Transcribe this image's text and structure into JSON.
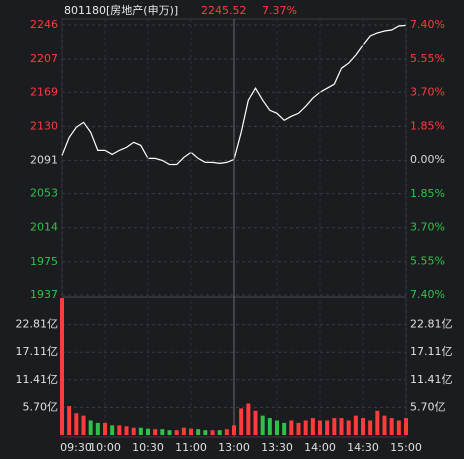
{
  "chart_data": [
    {
      "type": "line",
      "title": "801180[房地产(申万)]",
      "last_price": 2245.52,
      "change_pct": {
        "value": 7.37,
        "label": "7.37%"
      },
      "x": [
        "09:30",
        "09:35",
        "09:40",
        "09:45",
        "09:50",
        "09:55",
        "10:00",
        "10:05",
        "10:10",
        "10:15",
        "10:20",
        "10:25",
        "10:30",
        "10:35",
        "10:40",
        "10:45",
        "10:50",
        "10:55",
        "11:00",
        "11:05",
        "11:10",
        "11:15",
        "11:20",
        "11:25",
        "11:30",
        "13:05",
        "13:10",
        "13:15",
        "13:20",
        "13:25",
        "13:30",
        "13:35",
        "13:40",
        "13:45",
        "13:50",
        "13:55",
        "14:00",
        "14:05",
        "14:10",
        "14:15",
        "14:20",
        "14:25",
        "14:30",
        "14:35",
        "14:40",
        "14:45",
        "14:50",
        "14:55",
        "15:00"
      ],
      "series": [
        {
          "color": "#ffffff",
          "values": [
            2096.8,
            2117.4,
            2128.9,
            2134.6,
            2123.2,
            2102.5,
            2102.5,
            2097.9,
            2102.5,
            2105.9,
            2111.7,
            2108.2,
            2093.3,
            2093.3,
            2091.0,
            2086.4,
            2086.4,
            2094.5,
            2100.2,
            2093.3,
            2088.7,
            2088.7,
            2087.6,
            2088.7,
            2092.2,
            2123.2,
            2159.9,
            2173.7,
            2159.9,
            2148.4,
            2145.0,
            2136.9,
            2141.5,
            2145.0,
            2153.0,
            2162.2,
            2169.1,
            2173.7,
            2178.3,
            2196.6,
            2202.4,
            2211.6,
            2223.0,
            2233.4,
            2236.8,
            2239.1,
            2240.3,
            2244.9,
            2245.52
          ]
        }
      ],
      "ylim": [
        1937,
        2246
      ],
      "yticks": [
        2246,
        2207,
        2169,
        2130,
        2091,
        2053,
        2014,
        1975,
        1937
      ],
      "y2lim": [
        -7.4,
        7.4
      ],
      "y2ticks": [
        {
          "value": 7.4,
          "label": "7.40%"
        },
        {
          "value": 5.55,
          "label": "5.55%"
        },
        {
          "value": 3.7,
          "label": "3.70%"
        },
        {
          "value": 1.85,
          "label": "1.85%"
        },
        {
          "value": 0,
          "label": "0.00%"
        },
        {
          "value": -1.85,
          "label": "1.85%"
        },
        {
          "value": -3.7,
          "label": "3.70%"
        },
        {
          "value": -5.55,
          "label": "5.55%"
        },
        {
          "value": -7.4,
          "label": "7.40%"
        }
      ],
      "up_color": "#ff3b3b",
      "down_color": "#2fc24a",
      "flat_color": "#d8d8d8",
      "grid": true
    },
    {
      "type": "bar",
      "values": [
        28.3,
        6.0,
        4.5,
        4.0,
        3.0,
        2.5,
        2.5,
        2.0,
        2.0,
        1.8,
        1.5,
        1.5,
        1.3,
        1.2,
        1.2,
        1.0,
        1.0,
        1.5,
        1.3,
        1.2,
        1.0,
        1.0,
        1.0,
        1.2,
        2.0,
        5.5,
        6.5,
        5.0,
        4.0,
        3.5,
        3.0,
        2.5,
        3.0,
        2.5,
        3.0,
        3.5,
        3.0,
        3.0,
        3.5,
        3.5,
        3.0,
        4.0,
        3.5,
        3.0,
        5.0,
        4.0,
        3.5,
        3.0,
        3.5
      ],
      "colors": [
        "#ff3b3b",
        "#ff3b3b",
        "#ff3b3b",
        "#ff3b3b",
        "#2fc24a",
        "#2fc24a",
        "#ff3b3b",
        "#2fc24a",
        "#ff3b3b",
        "#ff3b3b",
        "#ff3b3b",
        "#2fc24a",
        "#2fc24a",
        "#ff3b3b",
        "#2fc24a",
        "#2fc24a",
        "#ff3b3b",
        "#ff3b3b",
        "#ff3b3b",
        "#2fc24a",
        "#2fc24a",
        "#ff3b3b",
        "#2fc24a",
        "#ff3b3b",
        "#ff3b3b",
        "#ff3b3b",
        "#ff3b3b",
        "#ff3b3b",
        "#2fc24a",
        "#2fc24a",
        "#2fc24a",
        "#2fc24a",
        "#ff3b3b",
        "#ff3b3b",
        "#ff3b3b",
        "#ff3b3b",
        "#ff3b3b",
        "#ff3b3b",
        "#ff3b3b",
        "#ff3b3b",
        "#ff3b3b",
        "#ff3b3b",
        "#ff3b3b",
        "#ff3b3b",
        "#ff3b3b",
        "#ff3b3b",
        "#ff3b3b",
        "#ff3b3b",
        "#ff3b3b"
      ],
      "ylim": [
        0,
        28.52
      ],
      "yticks": [
        {
          "value": 22.81,
          "label": "22.81亿"
        },
        {
          "value": 17.11,
          "label": "17.11亿"
        },
        {
          "value": 11.41,
          "label": "11.41亿"
        },
        {
          "value": 5.7,
          "label": "5.70亿"
        }
      ],
      "xticks": [
        "09:30",
        "10:00",
        "10:30",
        "11:00",
        "13:00",
        "13:30",
        "14:00",
        "14:30",
        "15:00"
      ],
      "label_color": "#e0e0e0"
    }
  ]
}
